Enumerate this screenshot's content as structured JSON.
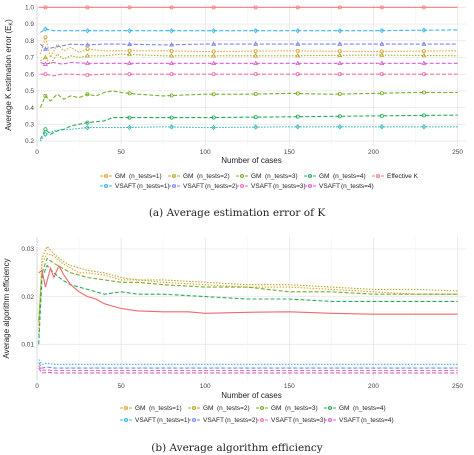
{
  "chart_data": [
    {
      "type": "line",
      "caption": "(a) Average estimation error of K",
      "xlabel": "Number of cases",
      "ylabel": "Average K estimation error (E",
      "ylabel_sub": "K",
      "xlim": [
        0,
        255
      ],
      "ylim": [
        0.17,
        1.02
      ],
      "xticks": [
        0,
        50,
        100,
        150,
        200,
        250
      ],
      "yticks": [
        0.2,
        0.3,
        0.4,
        0.5,
        0.6,
        0.7,
        0.8,
        0.9,
        1.0
      ],
      "ytick_labels": [
        "0.2",
        "0.3",
        "0.4",
        "0.5",
        "0.6",
        "0.7",
        "0.8",
        "0.9",
        "1.0"
      ],
      "grid": true,
      "legend_placement": "bottom",
      "legend_labels": [
        "GM",
        "(n_tests=1)",
        "GM",
        "(n_tests=2)",
        "GM",
        "(n_tests=3)",
        "GM",
        "(n_tests=4)",
        "Effective K",
        "VSAFT",
        "(n_tests=1)",
        "VSAFT",
        "(n_tests=2)",
        "VSAFT",
        "(n_tests=3)",
        "VSAFT",
        "(n_tests=4)"
      ],
      "series": [
        {
          "name": "Effective K",
          "color": "#f08080",
          "style": "solid",
          "marker": "circle",
          "x": [
            1,
            250
          ],
          "y": [
            1.0,
            1.0
          ]
        },
        {
          "name": "VSAFT (n_tests=1)",
          "color": "#35b6e8",
          "style": "dashed",
          "marker": "diamond",
          "x": [
            2,
            5,
            10,
            15,
            20,
            30,
            40,
            50,
            75,
            100,
            150,
            200,
            250
          ],
          "y": [
            0.85,
            0.87,
            0.86,
            0.86,
            0.86,
            0.86,
            0.86,
            0.86,
            0.86,
            0.86,
            0.86,
            0.86,
            0.865
          ]
        },
        {
          "name": "VSAFT (n_tests=2)",
          "color": "#7a86f0",
          "style": "dashed",
          "marker": "triangle",
          "x": [
            2,
            5,
            10,
            15,
            20,
            30,
            40,
            50,
            75,
            100,
            150,
            200,
            250
          ],
          "y": [
            0.78,
            0.75,
            0.76,
            0.77,
            0.78,
            0.775,
            0.78,
            0.78,
            0.775,
            0.78,
            0.78,
            0.78,
            0.78
          ]
        },
        {
          "name": "GM (n_tests=1)",
          "color": "#e0a43a",
          "style": "dotted",
          "marker": "circle",
          "x": [
            2,
            5,
            8,
            12,
            16,
            20,
            25,
            30,
            40,
            50,
            75,
            100,
            150,
            200,
            250
          ],
          "y": [
            0.72,
            0.82,
            0.7,
            0.78,
            0.74,
            0.76,
            0.73,
            0.75,
            0.74,
            0.74,
            0.74,
            0.735,
            0.74,
            0.735,
            0.74
          ]
        },
        {
          "name": "GM (n_tests=2)",
          "color": "#b5a92a",
          "style": "dotted",
          "marker": "triangle",
          "x": [
            2,
            5,
            8,
            12,
            16,
            20,
            25,
            30,
            40,
            50,
            75,
            100,
            150,
            200,
            250
          ],
          "y": [
            0.68,
            0.7,
            0.66,
            0.72,
            0.69,
            0.71,
            0.7,
            0.71,
            0.71,
            0.72,
            0.71,
            0.71,
            0.71,
            0.715,
            0.71
          ]
        },
        {
          "name": "VSAFT (n_tests=4)",
          "color": "#d75fd2",
          "style": "dashed",
          "marker": "triangle",
          "x": [
            2,
            5,
            10,
            15,
            20,
            30,
            40,
            50,
            75,
            100,
            150,
            200,
            250
          ],
          "y": [
            0.67,
            0.66,
            0.67,
            0.66,
            0.67,
            0.665,
            0.665,
            0.665,
            0.665,
            0.665,
            0.665,
            0.665,
            0.665
          ]
        },
        {
          "name": "VSAFT (n_tests=3)",
          "color": "#f06fb0",
          "style": "dashed",
          "marker": "circle",
          "x": [
            2,
            5,
            10,
            15,
            20,
            30,
            40,
            50,
            75,
            100,
            150,
            200,
            250
          ],
          "y": [
            0.6,
            0.6,
            0.59,
            0.6,
            0.6,
            0.595,
            0.6,
            0.6,
            0.6,
            0.6,
            0.6,
            0.6,
            0.6
          ]
        },
        {
          "name": "GM (n_tests=3)",
          "color": "#79ad2c",
          "style": "dashed",
          "marker": "circle",
          "x": [
            2,
            5,
            8,
            12,
            16,
            20,
            25,
            30,
            35,
            40,
            45,
            50,
            60,
            75,
            100,
            125,
            150,
            175,
            200,
            225,
            250
          ],
          "y": [
            0.4,
            0.47,
            0.44,
            0.48,
            0.45,
            0.47,
            0.46,
            0.48,
            0.47,
            0.49,
            0.5,
            0.49,
            0.48,
            0.47,
            0.48,
            0.48,
            0.485,
            0.48,
            0.485,
            0.49,
            0.49
          ]
        },
        {
          "name": "GM (n_tests=4)",
          "color": "#2aab58",
          "style": "dashed",
          "marker": "circle",
          "x": [
            2,
            5,
            8,
            12,
            16,
            20,
            30,
            40,
            45,
            50,
            75,
            100,
            150,
            200,
            250
          ],
          "y": [
            0.21,
            0.27,
            0.24,
            0.26,
            0.27,
            0.29,
            0.31,
            0.32,
            0.34,
            0.34,
            0.34,
            0.34,
            0.345,
            0.35,
            0.355
          ]
        },
        {
          "name": "VSAFT (n_tests=1) low",
          "color": "#2fb5b5",
          "style": "dotted",
          "marker": "diamond",
          "x": [
            2,
            5,
            10,
            15,
            20,
            30,
            40,
            50,
            75,
            100,
            150,
            200,
            250
          ],
          "y": [
            0.2,
            0.24,
            0.26,
            0.27,
            0.27,
            0.28,
            0.28,
            0.28,
            0.285,
            0.28,
            0.285,
            0.285,
            0.285
          ]
        }
      ]
    },
    {
      "type": "line",
      "caption": "(b) Average algorithm efficiency",
      "xlabel": "Number of cases",
      "ylabel": "Average algorithm efficiency",
      "xlim": [
        0,
        255
      ],
      "ylim": [
        0.0025,
        0.0325
      ],
      "xticks": [
        0,
        50,
        100,
        150,
        200,
        250
      ],
      "yticks": [
        0.01,
        0.02,
        0.03
      ],
      "ytick_labels": [
        "0.01",
        "0.02",
        "0.03"
      ],
      "grid": true,
      "legend_placement": "bottom",
      "legend_labels": [
        "GM",
        "(n_tests=1)",
        "GM",
        "(n_tests=2)",
        "GM",
        "(n_tests=3)",
        "GM",
        "(n_tests=4)",
        "VSAFT",
        "(n_tests=1)",
        "VSAFT",
        "(n_tests=2)",
        "VSAFT",
        "(n_tests=3)",
        "VSAFT",
        "(n_tests=4)"
      ],
      "series": [
        {
          "name": "GM (n_tests=2)",
          "color": "#b5a92a",
          "style": "dotted",
          "x": [
            1,
            3,
            6,
            10,
            15,
            20,
            25,
            30,
            40,
            50,
            60,
            75,
            100,
            125,
            150,
            175,
            200,
            225,
            250
          ],
          "y": [
            0.012,
            0.028,
            0.0305,
            0.029,
            0.0275,
            0.0265,
            0.026,
            0.0255,
            0.025,
            0.024,
            0.0235,
            0.0235,
            0.023,
            0.0225,
            0.0225,
            0.022,
            0.0215,
            0.0215,
            0.0212
          ]
        },
        {
          "name": "GM (n_tests=1)",
          "color": "#e0a43a",
          "style": "dotted",
          "x": [
            1,
            3,
            6,
            10,
            15,
            20,
            25,
            30,
            40,
            50,
            60,
            75,
            100,
            125,
            150,
            175,
            200,
            225,
            250
          ],
          "y": [
            0.014,
            0.027,
            0.029,
            0.0285,
            0.027,
            0.026,
            0.025,
            0.025,
            0.0245,
            0.0235,
            0.0235,
            0.023,
            0.0225,
            0.022,
            0.022,
            0.0215,
            0.021,
            0.0205,
            0.0205
          ]
        },
        {
          "name": "GM (n_tests=3)",
          "color": "#79ad2c",
          "style": "dashed",
          "x": [
            1,
            3,
            6,
            10,
            15,
            20,
            25,
            30,
            40,
            50,
            60,
            75,
            100,
            125,
            150,
            175,
            200,
            225,
            250
          ],
          "y": [
            0.015,
            0.025,
            0.028,
            0.027,
            0.026,
            0.025,
            0.0245,
            0.024,
            0.0235,
            0.023,
            0.023,
            0.0225,
            0.022,
            0.022,
            0.021,
            0.021,
            0.0205,
            0.0205,
            0.0205
          ]
        },
        {
          "name": "GM (n_tests=4)",
          "color": "#2aab58",
          "style": "dashed",
          "x": [
            1,
            3,
            6,
            10,
            15,
            20,
            25,
            30,
            40,
            50,
            60,
            75,
            100,
            125,
            150,
            175,
            200,
            225,
            250
          ],
          "y": [
            0.01,
            0.024,
            0.0265,
            0.025,
            0.0235,
            0.0225,
            0.022,
            0.0215,
            0.0205,
            0.021,
            0.0205,
            0.0205,
            0.02,
            0.0195,
            0.0195,
            0.019,
            0.019,
            0.019,
            0.019
          ]
        },
        {
          "name": "Effective K",
          "color": "#f06a6a",
          "style": "solid",
          "x": [
            1,
            3,
            5,
            8,
            10,
            13,
            16,
            20,
            25,
            30,
            35,
            40,
            45,
            50,
            60,
            75,
            90,
            100,
            125,
            150,
            175,
            200,
            225,
            250
          ],
          "y": [
            0.025,
            0.0255,
            0.022,
            0.026,
            0.024,
            0.0265,
            0.0245,
            0.0225,
            0.021,
            0.02,
            0.0195,
            0.0185,
            0.018,
            0.0175,
            0.017,
            0.0168,
            0.0168,
            0.0165,
            0.0167,
            0.0168,
            0.0165,
            0.0163,
            0.0163,
            0.0163
          ]
        },
        {
          "name": "VSAFT (n_tests=1)",
          "color": "#35b6e8",
          "style": "dotted",
          "x": [
            1,
            3,
            6,
            10,
            20,
            30,
            40,
            50,
            75,
            100,
            125,
            150,
            175,
            200,
            225,
            250
          ],
          "y": [
            0.0068,
            0.0058,
            0.006,
            0.0058,
            0.0058,
            0.0058,
            0.0058,
            0.0058,
            0.0058,
            0.0058,
            0.0058,
            0.0058,
            0.0058,
            0.0058,
            0.0058,
            0.0058
          ]
        },
        {
          "name": "VSAFT (n_tests=2)",
          "color": "#7a86f0",
          "style": "dashed",
          "x": [
            1,
            3,
            6,
            10,
            20,
            30,
            40,
            50,
            75,
            100,
            125,
            150,
            175,
            200,
            225,
            250
          ],
          "y": [
            0.0062,
            0.005,
            0.0052,
            0.005,
            0.005,
            0.005,
            0.005,
            0.005,
            0.005,
            0.005,
            0.005,
            0.005,
            0.005,
            0.005,
            0.005,
            0.005
          ]
        },
        {
          "name": "VSAFT (n_tests=3)",
          "color": "#f06fb0",
          "style": "dashed",
          "x": [
            1,
            3,
            6,
            10,
            20,
            30,
            40,
            50,
            75,
            100,
            125,
            150,
            175,
            200,
            225,
            250
          ],
          "y": [
            0.0055,
            0.0045,
            0.0046,
            0.0045,
            0.0045,
            0.0045,
            0.0045,
            0.0045,
            0.0045,
            0.0045,
            0.0045,
            0.0045,
            0.0045,
            0.0045,
            0.0045,
            0.0045
          ]
        },
        {
          "name": "VSAFT (n_tests=4)",
          "color": "#d75fd2",
          "style": "dashed",
          "x": [
            1,
            3,
            6,
            10,
            20,
            30,
            40,
            50,
            75,
            100,
            125,
            150,
            175,
            200,
            225,
            250
          ],
          "y": [
            0.005,
            0.004,
            0.0041,
            0.004,
            0.004,
            0.004,
            0.004,
            0.004,
            0.004,
            0.004,
            0.004,
            0.004,
            0.004,
            0.004,
            0.004,
            0.004
          ]
        }
      ]
    }
  ]
}
